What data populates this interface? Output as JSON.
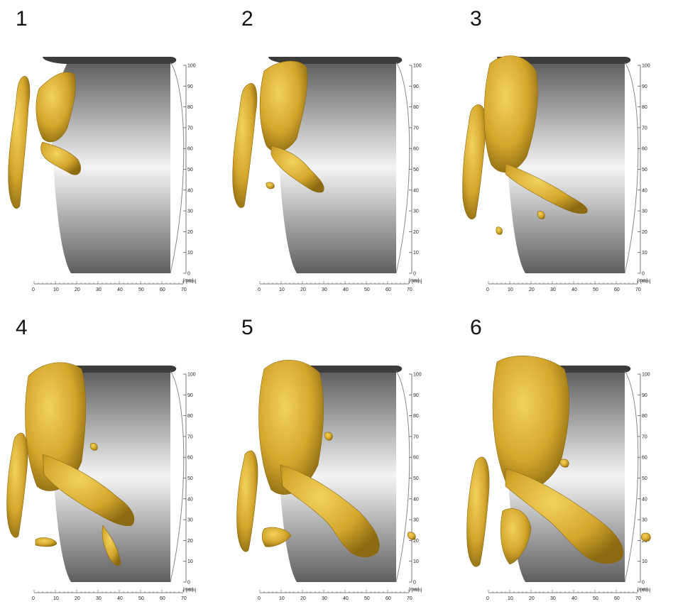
{
  "panels": [
    {
      "number": "1",
      "stage": 1
    },
    {
      "number": "2",
      "stage": 2
    },
    {
      "number": "3",
      "stage": 3
    },
    {
      "number": "4",
      "stage": 4
    },
    {
      "number": "5",
      "stage": 5
    },
    {
      "number": "6",
      "stage": 6
    }
  ],
  "axes": {
    "vertical_ticks": [
      "100",
      "90",
      "80",
      "70",
      "60",
      "50",
      "40",
      "30",
      "20",
      "10",
      "0"
    ],
    "horizontal_ticks": [
      "0",
      "10",
      "20",
      "30",
      "40",
      "50",
      "60",
      "70"
    ],
    "unit": "[mm]"
  },
  "colors": {
    "deposit": "#d4a72c",
    "deposit_highlight": "#f3d25c",
    "deposit_shadow": "#8c6a12",
    "cylinder_dark": "#5e5e5e",
    "cylinder_light": "#f4f4f4",
    "rim": "#3c3c3c"
  }
}
